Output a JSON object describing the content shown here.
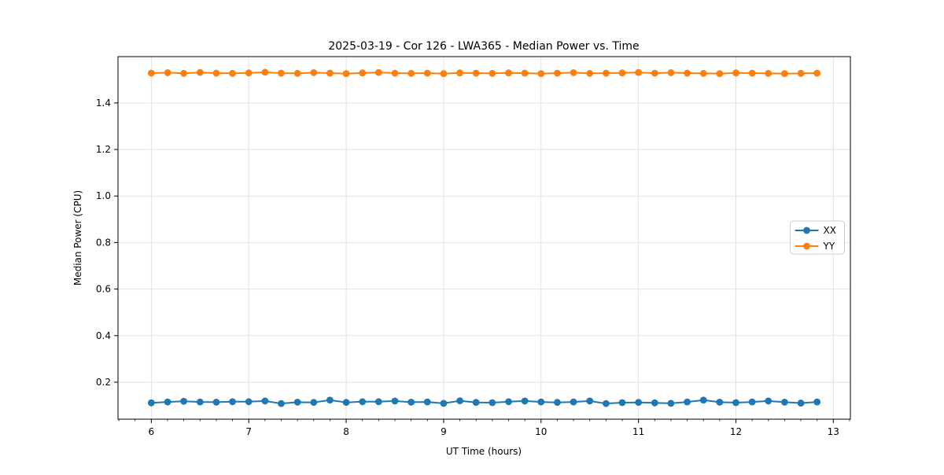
{
  "figure": {
    "background": "#ffffff",
    "plot_background": "#ffffff",
    "grid_color": "#e2e2e2",
    "spine_color": "#000000",
    "legend_border_color": "#cccccc"
  },
  "chart_data": {
    "type": "line",
    "title": "2025-03-19 - Cor 126 - LWA365 - Median Power vs. Time",
    "xlabel": "UT Time (hours)",
    "ylabel": "Median Power (CPU)",
    "xlim": [
      5.658,
      13.175
    ],
    "ylim": [
      0.041,
      1.599
    ],
    "xticks": [
      6,
      7,
      8,
      9,
      10,
      11,
      12,
      13
    ],
    "yticks": [
      0.2,
      0.4,
      0.6,
      0.8,
      1.0,
      1.2,
      1.4
    ],
    "x_minor_step": 0.166667,
    "grid": true,
    "legend_position": "center-right",
    "x": [
      6.0,
      6.167,
      6.333,
      6.5,
      6.667,
      6.833,
      7.0,
      7.167,
      7.333,
      7.5,
      7.667,
      7.833,
      8.0,
      8.167,
      8.333,
      8.5,
      8.667,
      8.833,
      9.0,
      9.167,
      9.333,
      9.5,
      9.667,
      9.833,
      10.0,
      10.167,
      10.333,
      10.5,
      10.667,
      10.833,
      11.0,
      11.167,
      11.333,
      11.5,
      11.667,
      11.833,
      12.0,
      12.167,
      12.333,
      12.5,
      12.667,
      12.833
    ],
    "series": [
      {
        "name": "XX",
        "color": "#1f77b4",
        "values": [
          0.111,
          0.115,
          0.118,
          0.115,
          0.114,
          0.116,
          0.116,
          0.119,
          0.108,
          0.114,
          0.113,
          0.123,
          0.113,
          0.116,
          0.116,
          0.119,
          0.114,
          0.115,
          0.109,
          0.12,
          0.113,
          0.112,
          0.116,
          0.119,
          0.115,
          0.113,
          0.115,
          0.119,
          0.108,
          0.112,
          0.113,
          0.111,
          0.109,
          0.115,
          0.123,
          0.114,
          0.112,
          0.115,
          0.119,
          0.114,
          0.11,
          0.115
        ]
      },
      {
        "name": "YY",
        "color": "#ff7f0e",
        "values": [
          1.528,
          1.53,
          1.527,
          1.531,
          1.528,
          1.527,
          1.529,
          1.532,
          1.528,
          1.527,
          1.53,
          1.528,
          1.526,
          1.529,
          1.531,
          1.528,
          1.527,
          1.528,
          1.526,
          1.529,
          1.528,
          1.527,
          1.529,
          1.528,
          1.526,
          1.528,
          1.53,
          1.527,
          1.528,
          1.529,
          1.531,
          1.528,
          1.53,
          1.528,
          1.527,
          1.526,
          1.529,
          1.528,
          1.527,
          1.526,
          1.527,
          1.528
        ]
      }
    ]
  }
}
